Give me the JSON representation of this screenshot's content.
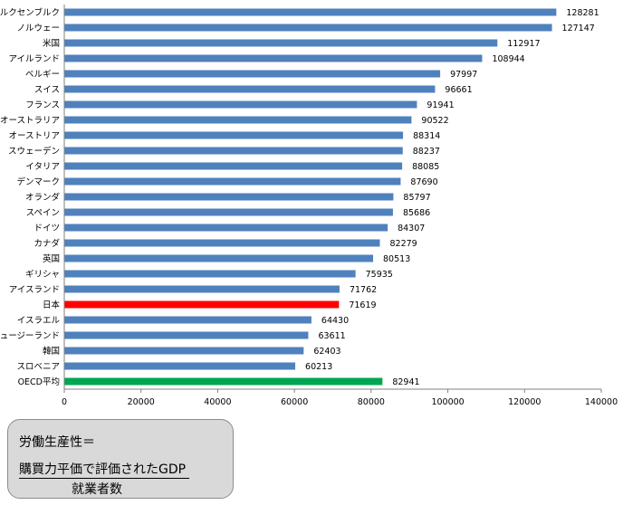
{
  "chart_data": {
    "type": "bar",
    "orientation": "horizontal",
    "categories": [
      "ルクセンブルク",
      "ノルウェー",
      "米国",
      "アイルランド",
      "ベルギー",
      "スイス",
      "フランス",
      "オーストラリア",
      "オーストリア",
      "スウェーデン",
      "イタリア",
      "デンマーク",
      "オランダ",
      "スペイン",
      "ドイツ",
      "カナダ",
      "英国",
      "ギリシャ",
      "アイスランド",
      "日本",
      "イスラエル",
      "ニュージーランド",
      "韓国",
      "スロベニア",
      "OECD平均"
    ],
    "values": [
      128281,
      127147,
      112917,
      108944,
      97997,
      96661,
      91941,
      90522,
      88314,
      88237,
      88085,
      87690,
      85797,
      85686,
      84307,
      82279,
      80513,
      75935,
      71762,
      71619,
      64430,
      63611,
      62403,
      60213,
      82941
    ],
    "bar_colors": [
      "#4f81bd",
      "#4f81bd",
      "#4f81bd",
      "#4f81bd",
      "#4f81bd",
      "#4f81bd",
      "#4f81bd",
      "#4f81bd",
      "#4f81bd",
      "#4f81bd",
      "#4f81bd",
      "#4f81bd",
      "#4f81bd",
      "#4f81bd",
      "#4f81bd",
      "#4f81bd",
      "#4f81bd",
      "#4f81bd",
      "#4f81bd",
      "#ff0000",
      "#4f81bd",
      "#4f81bd",
      "#4f81bd",
      "#4f81bd",
      "#00a651"
    ],
    "xlim": [
      0,
      140000
    ],
    "xticks": [
      0,
      20000,
      40000,
      60000,
      80000,
      100000,
      120000,
      140000
    ],
    "grid": false,
    "legend": "none"
  },
  "formula": {
    "title": "労働生産性＝",
    "numerator": "購買力平価で評価されたGDP",
    "denominator": "就業者数"
  }
}
